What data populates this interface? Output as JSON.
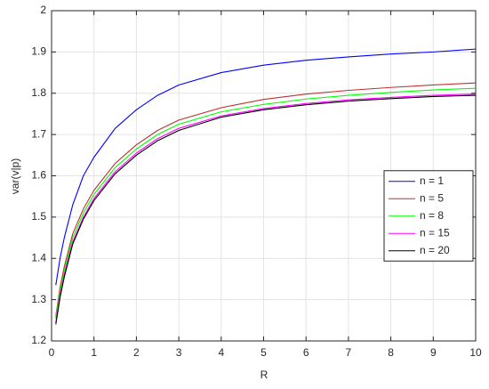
{
  "chart_data": {
    "type": "line",
    "xlabel": "R",
    "ylabel": "var(v|p)",
    "x": [
      0.1,
      0.2,
      0.3,
      0.5,
      0.75,
      1,
      1.5,
      2,
      2.5,
      3,
      4,
      5,
      6,
      7,
      8,
      9,
      10
    ],
    "series": [
      {
        "name": "n = 1",
        "color": "#0000ff",
        "values": [
          1.335,
          1.4,
          1.45,
          1.53,
          1.6,
          1.645,
          1.715,
          1.76,
          1.795,
          1.82,
          1.85,
          1.868,
          1.88,
          1.888,
          1.895,
          1.9,
          1.907
        ]
      },
      {
        "name": "n = 5",
        "color": "#c03030",
        "values": [
          1.26,
          1.33,
          1.38,
          1.46,
          1.52,
          1.565,
          1.63,
          1.675,
          1.71,
          1.735,
          1.765,
          1.785,
          1.798,
          1.807,
          1.814,
          1.82,
          1.825
        ]
      },
      {
        "name": "n = 8",
        "color": "#00ff00",
        "values": [
          1.255,
          1.32,
          1.37,
          1.45,
          1.51,
          1.555,
          1.62,
          1.665,
          1.7,
          1.725,
          1.755,
          1.773,
          1.786,
          1.795,
          1.802,
          1.808,
          1.812
        ]
      },
      {
        "name": "n = 15",
        "color": "#ff00ff",
        "values": [
          1.245,
          1.31,
          1.36,
          1.44,
          1.5,
          1.545,
          1.61,
          1.655,
          1.69,
          1.715,
          1.745,
          1.763,
          1.775,
          1.784,
          1.79,
          1.795,
          1.798
        ]
      },
      {
        "name": "n = 20",
        "color": "#000000",
        "values": [
          1.24,
          1.305,
          1.355,
          1.435,
          1.495,
          1.54,
          1.605,
          1.65,
          1.685,
          1.71,
          1.742,
          1.76,
          1.772,
          1.781,
          1.787,
          1.792,
          1.795
        ]
      }
    ],
    "xlim": [
      0,
      10
    ],
    "xticks": [
      0,
      1,
      2,
      3,
      4,
      5,
      6,
      7,
      8,
      9,
      10
    ],
    "ylim": [
      1.2,
      2
    ],
    "yticks": [
      1.2,
      1.3,
      1.4,
      1.5,
      1.6,
      1.7,
      1.8,
      1.9,
      2
    ],
    "grid": true,
    "legend": "right"
  }
}
